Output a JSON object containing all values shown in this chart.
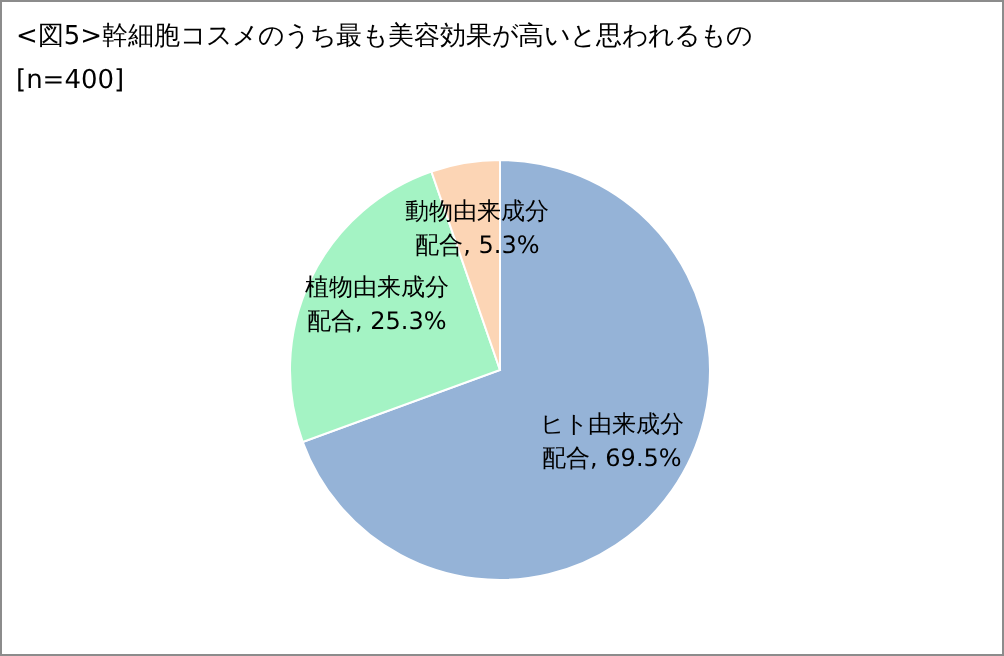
{
  "chart_data": {
    "type": "pie",
    "title": "<図5>幹細胞コスメのうち最も美容効果が高いと思われるもの",
    "subtitle": "[n=400]",
    "categories": [
      "ヒト由来成分配合",
      "植物由来成分配合",
      "動物由来成分配合"
    ],
    "values": [
      69.5,
      25.3,
      5.3
    ],
    "value_labels": [
      "69.5%",
      "25.3%",
      "5.3%"
    ],
    "colors": [
      "#95b3d7",
      "#a4f3c4",
      "#fcd5b5"
    ],
    "legend": false
  }
}
